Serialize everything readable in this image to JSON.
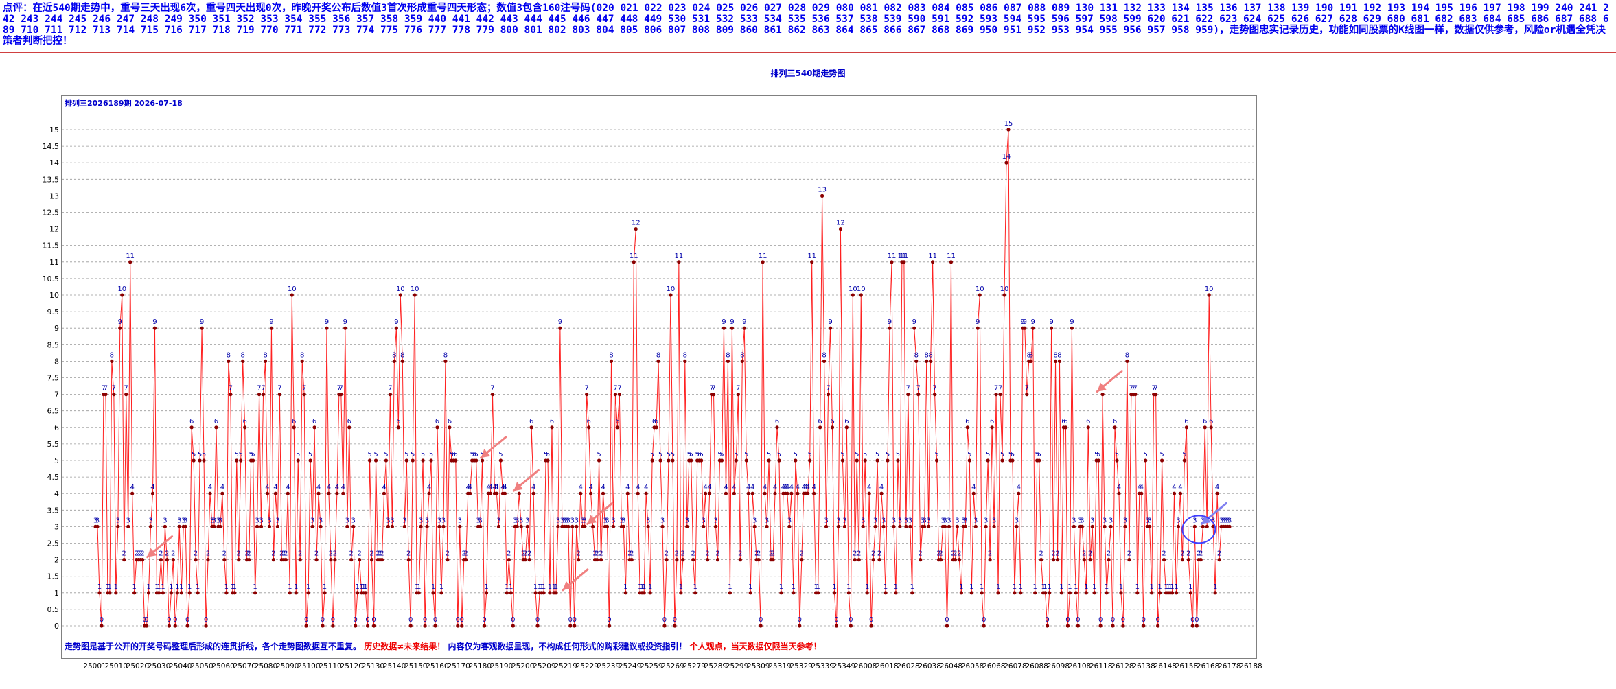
{
  "comment": "点评：在近540期走势中，重号三天出现6次，重号四天出现0次，昨晚开奖公布后数值3首次形成重号四天形态；数值3包含160注号码(020 021 022 023 024 025 026 027 028 029 080 081 082 083 084 085 086 087 088 089 130 131 132 133 134 135 136 137 138 139 190 191 192 193 194 195 196 197 198 199 240 241 242 243 244 245 246 247 248 249 350 351 352 353 354 355 356 357 358 359 440 441 442 443 444 445 446 447 448 449 530 531 532 533 534 535 536 537 538 539 590 591 592 593 594 595 596 597 598 599 620 621 622 623 624 625 626 627 628 629 680 681 682 683 684 685 686 687 688 689 710 711 712 713 714 715 716 717 718 719 770 771 772 773 774 775 776 777 778 779 800 801 802 803 804 805 806 807 808 809 860 861 862 863 864 865 866 867 868 869 950 951 952 953 954 955 956 957 958 959)，走势图忠实记录历史，功能如同股票的K线图一样，数据仅供参考，风险or机遇全凭决策者判断把控！",
  "chart_title": "排列三540期走势图",
  "chart_data": {
    "type": "line",
    "subtitle": "排列三2026189期 2026-07-18",
    "footer_blue": "走势图是基于公开的开奖号码整理后形成的连贯折线，各个走势图数据互不重复。",
    "footer_red_1": "历史数据≠未来结果！",
    "footer_blue_2": "内容仅为客观数据呈现，不构成任何形式的购彩建议或投资指引！",
    "footer_red_2": "个人观点，当天数据仅限当天参考！",
    "y_ticks": [
      "0",
      "0.5",
      "1",
      "1.5",
      "2",
      "2.5",
      "3",
      "3.5",
      "4",
      "4.5",
      "5",
      "5.5",
      "6",
      "6.5",
      "7",
      "7.5",
      "8",
      "8.5",
      "9",
      "9.5",
      "10",
      "10.5",
      "11",
      "11.5",
      "12",
      "12.5",
      "13",
      "13.5",
      "14",
      "14.5",
      "15"
    ],
    "ylim": [
      0,
      15.5
    ],
    "x_ticks": [
      "25001",
      "25010",
      "25020",
      "25030",
      "25040",
      "25050",
      "25060",
      "25070",
      "25080",
      "25090",
      "25100",
      "25110",
      "25120",
      "25130",
      "25140",
      "25150",
      "25160",
      "25170",
      "25180",
      "25190",
      "25200",
      "25209",
      "25219",
      "25229",
      "25239",
      "25249",
      "25259",
      "25269",
      "25279",
      "25289",
      "25299",
      "25309",
      "25319",
      "25329",
      "25339",
      "25349",
      "26008",
      "26018",
      "26028",
      "26038",
      "26048",
      "26058",
      "26068",
      "26078",
      "26088",
      "26098",
      "26108",
      "26118",
      "26128",
      "26138",
      "26148",
      "26158",
      "26168",
      "26178",
      "26188"
    ],
    "series": [
      {
        "color": "#ff2020",
        "marker_color": "#8b0000",
        "values": [
          3,
          3,
          1,
          0,
          7,
          7,
          1,
          1,
          8,
          7,
          1,
          3,
          9,
          10,
          2,
          7,
          3,
          11,
          4,
          1,
          2,
          2,
          2,
          2,
          0,
          0,
          1,
          3,
          4,
          9,
          1,
          1,
          2,
          1,
          3,
          2,
          0,
          1,
          2,
          0,
          1,
          3,
          1,
          3,
          3,
          0,
          1,
          6,
          5,
          2,
          1,
          5,
          9,
          5,
          0,
          2,
          4,
          3,
          3,
          6,
          3,
          3,
          4,
          2,
          1,
          8,
          7,
          1,
          1,
          5,
          2,
          5,
          8,
          6,
          2,
          2,
          5,
          5,
          1,
          3,
          7,
          3,
          7,
          8,
          4,
          3,
          9,
          2,
          4,
          3,
          7,
          2,
          2,
          2,
          4,
          1,
          10,
          6,
          1,
          5,
          2,
          8,
          7,
          0,
          1,
          5,
          3,
          6,
          2,
          4,
          3,
          0,
          1,
          9,
          4,
          2,
          0,
          2,
          4,
          7,
          7,
          4,
          9,
          3,
          6,
          2,
          3,
          0,
          1,
          2,
          1,
          1,
          1,
          0,
          5,
          2,
          0,
          5,
          2,
          2,
          2,
          4,
          5,
          3,
          7,
          3,
          8,
          9,
          6,
          10,
          8,
          3,
          5,
          2,
          0,
          5,
          10,
          1,
          1,
          3,
          5,
          0,
          3,
          4,
          5,
          1,
          0,
          6,
          3,
          1,
          3,
          8,
          2,
          6,
          5,
          5,
          5,
          0,
          3,
          0,
          2,
          2,
          4,
          4,
          5,
          5,
          5,
          3,
          3,
          5,
          0,
          1,
          4,
          4,
          7,
          4,
          4,
          3,
          5,
          4,
          4,
          1,
          2,
          1,
          0,
          3,
          3,
          4,
          3,
          2,
          2,
          3,
          2,
          6,
          4,
          1,
          0,
          1,
          1,
          1,
          5,
          5,
          1,
          6,
          1,
          1,
          3,
          9,
          3,
          3,
          3,
          3,
          0,
          3,
          0,
          3,
          2,
          4,
          3,
          3,
          7,
          6,
          4,
          3,
          2,
          2,
          5,
          2,
          4,
          3,
          3,
          0,
          8,
          3,
          7,
          6,
          7,
          3,
          3,
          1,
          4,
          2,
          2,
          11,
          12,
          4,
          1,
          1,
          1,
          4,
          3,
          1,
          5,
          6,
          6,
          8,
          5,
          3,
          0,
          2,
          5,
          10,
          5,
          0,
          2,
          11,
          1,
          2,
          8,
          3,
          5,
          5,
          2,
          1,
          5,
          5,
          5,
          3,
          4,
          2,
          4,
          7,
          7,
          3,
          2,
          5,
          5,
          9,
          4,
          8,
          1,
          9,
          4,
          5,
          7,
          2,
          8,
          9,
          5,
          4,
          1,
          4,
          3,
          2,
          2,
          0,
          11,
          4,
          3,
          5,
          2,
          2,
          4,
          6,
          5,
          1,
          4,
          4,
          4,
          3,
          4,
          1,
          5,
          4,
          0,
          2,
          4,
          4,
          4,
          5,
          11,
          4,
          1,
          1,
          6,
          13,
          8,
          3,
          7,
          9,
          6,
          1,
          0,
          3,
          12,
          5,
          3,
          6,
          1,
          0,
          10,
          2,
          5,
          2,
          10,
          3,
          5,
          1,
          4,
          0,
          2,
          3,
          5,
          2,
          4,
          3,
          1,
          5,
          9,
          11,
          3,
          1,
          5,
          3,
          11,
          11,
          3,
          7,
          3,
          1,
          9,
          8,
          7,
          2,
          3,
          3,
          8,
          3,
          8,
          11,
          7,
          5,
          2,
          2,
          3,
          3,
          0,
          3,
          11,
          2,
          2,
          3,
          2,
          1,
          3,
          3,
          6,
          5,
          1,
          4,
          3,
          9,
          10,
          1,
          0,
          3,
          5,
          2,
          6,
          3,
          7,
          1,
          7,
          5,
          10,
          14,
          15,
          5,
          5,
          1,
          3,
          4,
          1,
          9,
          9,
          7,
          8,
          8,
          9,
          1,
          5,
          5,
          2,
          1,
          1,
          0,
          1,
          9,
          2,
          8,
          2,
          8,
          1,
          6,
          6,
          0,
          1,
          9,
          3,
          1,
          0,
          3,
          3,
          2,
          1,
          6,
          2,
          3,
          1,
          5,
          5,
          0,
          7,
          3,
          1,
          2,
          3,
          0,
          6,
          5,
          4,
          1,
          0,
          3,
          8,
          2,
          7,
          7,
          7,
          1,
          4,
          4,
          0,
          5,
          3,
          3,
          1,
          7,
          7,
          0,
          1,
          5,
          2,
          1,
          1,
          1,
          1,
          4,
          1,
          3,
          4,
          2,
          5,
          6,
          2,
          1,
          0,
          3,
          0,
          2,
          2,
          3,
          6,
          3,
          10,
          6,
          3,
          1,
          4,
          2,
          3,
          3,
          3,
          3,
          3
        ]
      }
    ],
    "grid": "horizontal-dashed",
    "arrows": [
      {
        "color": "#f08080",
        "x_index": 24,
        "y": 2
      },
      {
        "color": "#f08080",
        "x_index": 187,
        "y": 5
      },
      {
        "color": "#f08080",
        "x_index": 203,
        "y": 4
      },
      {
        "color": "#f08080",
        "x_index": 227,
        "y": 1
      },
      {
        "color": "#f08080",
        "x_index": 239,
        "y": 3
      },
      {
        "color": "#f08080",
        "x_index": 488,
        "y": 7
      },
      {
        "color": "#8080f0",
        "x_index": 539,
        "y": 3
      }
    ],
    "highlight_circle": {
      "color": "#4040ff",
      "x_index": 537,
      "y": 3
    }
  }
}
